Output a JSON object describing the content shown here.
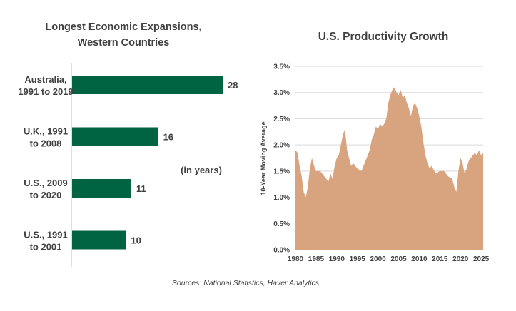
{
  "chart_data": [
    {
      "type": "bar",
      "orientation": "horizontal",
      "title_lines": [
        "Longest Economic Expansions,",
        "Western Countries"
      ],
      "categories": [
        [
          "Australia,",
          "1991 to 2019"
        ],
        [
          "U.K., 1991",
          "to 2008"
        ],
        [
          "U.S., 2009",
          "to 2020"
        ],
        [
          "U.S., 1991",
          "to 2001"
        ]
      ],
      "values": [
        28,
        16,
        11,
        10
      ],
      "annotation": "(in years)",
      "xlim": [
        0,
        30
      ],
      "bar_color": "#006341",
      "grid": false
    },
    {
      "type": "area",
      "title": "U.S. Productivity Growth",
      "ylabel": "10-Year Moving Average",
      "ylim": [
        0,
        3.5
      ],
      "yticks": [
        "0.0%",
        "0.5%",
        "1.0%",
        "1.5%",
        "2.0%",
        "2.5%",
        "3.0%",
        "3.5%"
      ],
      "xticks": [
        "1980",
        "1985",
        "1990",
        "1995",
        "2000",
        "2005",
        "2010",
        "2015",
        "2020",
        "2025"
      ],
      "xlim": [
        1980,
        2025.5
      ],
      "fill_color": "#D8A47F",
      "grid": true,
      "x": [
        1980,
        1980.5,
        1981,
        1981.5,
        1982,
        1982.5,
        1983,
        1983.5,
        1984,
        1984.5,
        1985,
        1986,
        1987,
        1988,
        1988.5,
        1989,
        1989.5,
        1990,
        1990.5,
        1991,
        1991.5,
        1992,
        1992.5,
        1993,
        1993.5,
        1994,
        1995,
        1996,
        1996.5,
        1997,
        1998,
        1998.5,
        1999,
        1999.5,
        2000,
        2000.5,
        2001,
        2001.5,
        2002,
        2002.5,
        2003,
        2003.5,
        2004,
        2004.5,
        2005,
        2005.5,
        2006,
        2006.5,
        2007,
        2007.5,
        2008,
        2008.5,
        2009,
        2009.5,
        2010,
        2010.5,
        2011,
        2011.5,
        2012,
        2012.5,
        2013,
        2014,
        2015,
        2016,
        2017,
        2018,
        2018.5,
        2019,
        2019.5,
        2020,
        2020.5,
        2021,
        2021.5,
        2022,
        2022.5,
        2023,
        2023.5,
        2024,
        2024.5,
        2025,
        2025.5
      ],
      "y": [
        1.9,
        1.85,
        1.6,
        1.4,
        1.1,
        1.0,
        1.2,
        1.55,
        1.75,
        1.6,
        1.5,
        1.5,
        1.4,
        1.3,
        1.45,
        1.35,
        1.6,
        1.75,
        1.8,
        2.0,
        2.2,
        2.3,
        1.9,
        1.75,
        1.6,
        1.65,
        1.55,
        1.5,
        1.6,
        1.7,
        1.9,
        2.1,
        2.2,
        2.35,
        2.3,
        2.4,
        2.35,
        2.4,
        2.5,
        2.8,
        2.95,
        3.05,
        3.1,
        3.0,
        2.95,
        3.05,
        2.9,
        2.95,
        2.8,
        2.7,
        2.55,
        2.75,
        2.8,
        2.7,
        2.55,
        2.35,
        2.05,
        1.8,
        1.65,
        1.55,
        1.6,
        1.45,
        1.5,
        1.5,
        1.4,
        1.35,
        1.2,
        1.1,
        1.5,
        1.75,
        1.65,
        1.45,
        1.55,
        1.7,
        1.75,
        1.8,
        1.85,
        1.8,
        1.9,
        1.8,
        1.85
      ]
    }
  ],
  "footer": {
    "source": "Sources: National Statistics, Haver Analytics"
  }
}
